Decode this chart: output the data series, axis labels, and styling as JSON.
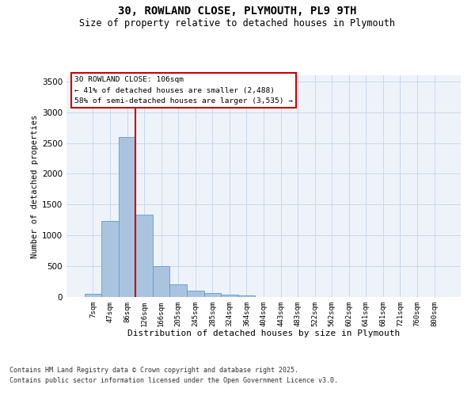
{
  "title1": "30, ROWLAND CLOSE, PLYMOUTH, PL9 9TH",
  "title2": "Size of property relative to detached houses in Plymouth",
  "xlabel": "Distribution of detached houses by size in Plymouth",
  "ylabel": "Number of detached properties",
  "categories": [
    "7sqm",
    "47sqm",
    "86sqm",
    "126sqm",
    "166sqm",
    "205sqm",
    "245sqm",
    "285sqm",
    "324sqm",
    "364sqm",
    "404sqm",
    "443sqm",
    "483sqm",
    "522sqm",
    "562sqm",
    "602sqm",
    "641sqm",
    "681sqm",
    "721sqm",
    "760sqm",
    "800sqm"
  ],
  "values": [
    50,
    1230,
    2600,
    1340,
    500,
    200,
    100,
    60,
    45,
    30,
    5,
    0,
    0,
    0,
    0,
    0,
    0,
    0,
    0,
    0,
    0
  ],
  "bar_color": "#aac4e0",
  "bar_edgecolor": "#5b9bd5",
  "bg_color": "#eef3fa",
  "grid_color": "#c8d8ec",
  "vline_color": "#cc0000",
  "vline_x": 2.5,
  "annotation_text": "30 ROWLAND CLOSE: 106sqm\n← 41% of detached houses are smaller (2,488)\n58% of semi-detached houses are larger (3,535) →",
  "footer1": "Contains HM Land Registry data © Crown copyright and database right 2025.",
  "footer2": "Contains public sector information licensed under the Open Government Licence v3.0.",
  "ylim_max": 3600,
  "yticks": [
    0,
    500,
    1000,
    1500,
    2000,
    2500,
    3000,
    3500
  ]
}
